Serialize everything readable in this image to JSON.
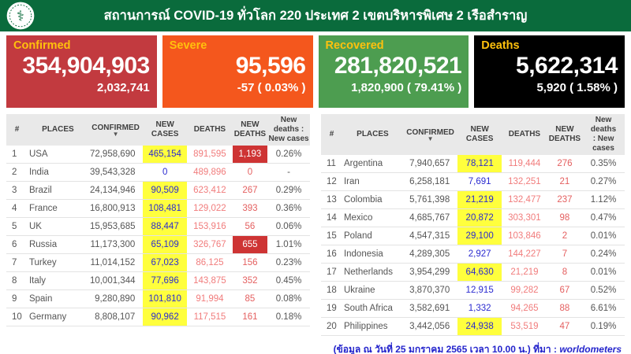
{
  "colors": {
    "header_bg": "#0a6b3c",
    "confirmed_bg": "#c23a3f",
    "severe_bg": "#f4571d",
    "recovered_bg": "#4d9d50",
    "deaths_bg": "#000000",
    "card_label": "#ffc10d",
    "new_cases_highlight": "#ffff3d",
    "new_cases_text": "#2a2ad0",
    "deaths_text": "#f17c7c",
    "new_deaths_highlight": "#ce3434",
    "footer_blue": "#2424cc"
  },
  "header": {
    "title": "สถานการณ์ COVID-19 ทั่วโลก 220 ประเทศ 2 เขตบริหารพิเศษ 2 เรือสำราญ",
    "logo_glyph": "⚕"
  },
  "cards": [
    {
      "label": "Confirmed",
      "value": "354,904,903",
      "sub": "2,032,741"
    },
    {
      "label": "Severe",
      "value": "95,596",
      "sub": "-57 ( 0.03% )"
    },
    {
      "label": "Recovered",
      "value": "281,820,521",
      "sub": "1,820,900 ( 79.41% )"
    },
    {
      "label": "Deaths",
      "value": "5,622,314",
      "sub": "5,920 ( 1.58% )"
    }
  ],
  "sort_caret": "▼",
  "tables": [
    {
      "headers": [
        {
          "label": "#"
        },
        {
          "label": "PLACES"
        },
        {
          "label": "CONFIRMED",
          "sort": true
        },
        {
          "label": "NEW\nCASES"
        },
        {
          "label": "DEATHS"
        },
        {
          "label": "NEW\nDEATHS"
        },
        {
          "label": "New deaths :\nNew cases"
        }
      ],
      "rows": [
        {
          "rank": "1",
          "place": "USA",
          "confirmed": "72,958,690",
          "new_cases": "465,154",
          "new_cases_hl": true,
          "deaths": "891,595",
          "new_deaths": "1,193",
          "new_deaths_hl": true,
          "ratio": "0.26%"
        },
        {
          "rank": "2",
          "place": "India",
          "confirmed": "39,543,328",
          "new_cases": "0",
          "new_cases_hl": false,
          "deaths": "489,896",
          "new_deaths": "0",
          "new_deaths_hl": false,
          "ratio": "-"
        },
        {
          "rank": "3",
          "place": "Brazil",
          "confirmed": "24,134,946",
          "new_cases": "90,509",
          "new_cases_hl": true,
          "deaths": "623,412",
          "new_deaths": "267",
          "new_deaths_hl": false,
          "ratio": "0.29%"
        },
        {
          "rank": "4",
          "place": "France",
          "confirmed": "16,800,913",
          "new_cases": "108,481",
          "new_cases_hl": true,
          "deaths": "129,022",
          "new_deaths": "393",
          "new_deaths_hl": false,
          "ratio": "0.36%"
        },
        {
          "rank": "5",
          "place": "UK",
          "confirmed": "15,953,685",
          "new_cases": "88,447",
          "new_cases_hl": true,
          "deaths": "153,916",
          "new_deaths": "56",
          "new_deaths_hl": false,
          "ratio": "0.06%"
        },
        {
          "rank": "6",
          "place": "Russia",
          "confirmed": "11,173,300",
          "new_cases": "65,109",
          "new_cases_hl": true,
          "deaths": "326,767",
          "new_deaths": "655",
          "new_deaths_hl": true,
          "ratio": "1.01%"
        },
        {
          "rank": "7",
          "place": "Turkey",
          "confirmed": "11,014,152",
          "new_cases": "67,023",
          "new_cases_hl": true,
          "deaths": "86,125",
          "new_deaths": "156",
          "new_deaths_hl": false,
          "ratio": "0.23%"
        },
        {
          "rank": "8",
          "place": "Italy",
          "confirmed": "10,001,344",
          "new_cases": "77,696",
          "new_cases_hl": true,
          "deaths": "143,875",
          "new_deaths": "352",
          "new_deaths_hl": false,
          "ratio": "0.45%"
        },
        {
          "rank": "9",
          "place": "Spain",
          "confirmed": "9,280,890",
          "new_cases": "101,810",
          "new_cases_hl": true,
          "deaths": "91,994",
          "new_deaths": "85",
          "new_deaths_hl": false,
          "ratio": "0.08%"
        },
        {
          "rank": "10",
          "place": "Germany",
          "confirmed": "8,808,107",
          "new_cases": "90,962",
          "new_cases_hl": true,
          "deaths": "117,515",
          "new_deaths": "161",
          "new_deaths_hl": false,
          "ratio": "0.18%"
        }
      ]
    },
    {
      "headers": [
        {
          "label": "#"
        },
        {
          "label": "PLACES"
        },
        {
          "label": "CONFIRMED",
          "sort": true
        },
        {
          "label": "NEW\nCASES"
        },
        {
          "label": "DEATHS"
        },
        {
          "label": "NEW\nDEATHS"
        },
        {
          "label": "New deaths\n: New cases"
        }
      ],
      "rows": [
        {
          "rank": "11",
          "place": "Argentina",
          "confirmed": "7,940,657",
          "new_cases": "78,121",
          "new_cases_hl": true,
          "deaths": "119,444",
          "new_deaths": "276",
          "new_deaths_hl": false,
          "ratio": "0.35%"
        },
        {
          "rank": "12",
          "place": "Iran",
          "confirmed": "6,258,181",
          "new_cases": "7,691",
          "new_cases_hl": false,
          "deaths": "132,251",
          "new_deaths": "21",
          "new_deaths_hl": false,
          "ratio": "0.27%"
        },
        {
          "rank": "13",
          "place": "Colombia",
          "confirmed": "5,761,398",
          "new_cases": "21,219",
          "new_cases_hl": true,
          "deaths": "132,477",
          "new_deaths": "237",
          "new_deaths_hl": false,
          "ratio": "1.12%"
        },
        {
          "rank": "14",
          "place": "Mexico",
          "confirmed": "4,685,767",
          "new_cases": "20,872",
          "new_cases_hl": true,
          "deaths": "303,301",
          "new_deaths": "98",
          "new_deaths_hl": false,
          "ratio": "0.47%"
        },
        {
          "rank": "15",
          "place": "Poland",
          "confirmed": "4,547,315",
          "new_cases": "29,100",
          "new_cases_hl": true,
          "deaths": "103,846",
          "new_deaths": "2",
          "new_deaths_hl": false,
          "ratio": "0.01%"
        },
        {
          "rank": "16",
          "place": "Indonesia",
          "confirmed": "4,289,305",
          "new_cases": "2,927",
          "new_cases_hl": false,
          "deaths": "144,227",
          "new_deaths": "7",
          "new_deaths_hl": false,
          "ratio": "0.24%"
        },
        {
          "rank": "17",
          "place": "Netherlands",
          "confirmed": "3,954,299",
          "new_cases": "64,630",
          "new_cases_hl": true,
          "deaths": "21,219",
          "new_deaths": "8",
          "new_deaths_hl": false,
          "ratio": "0.01%"
        },
        {
          "rank": "18",
          "place": "Ukraine",
          "confirmed": "3,870,370",
          "new_cases": "12,915",
          "new_cases_hl": false,
          "deaths": "99,282",
          "new_deaths": "67",
          "new_deaths_hl": false,
          "ratio": "0.52%"
        },
        {
          "rank": "19",
          "place": "South Africa",
          "confirmed": "3,582,691",
          "new_cases": "1,332",
          "new_cases_hl": false,
          "deaths": "94,265",
          "new_deaths": "88",
          "new_deaths_hl": false,
          "ratio": "6.61%"
        },
        {
          "rank": "20",
          "place": "Philippines",
          "confirmed": "3,442,056",
          "new_cases": "24,938",
          "new_cases_hl": true,
          "deaths": "53,519",
          "new_deaths": "47",
          "new_deaths_hl": false,
          "ratio": "0.19%"
        }
      ]
    }
  ],
  "footer": {
    "note": "(ข้อมูล ณ วันที่ 25 มกราคม 2565 เวลา 10.00 น.) ที่มา : ",
    "source": "worldometers"
  }
}
